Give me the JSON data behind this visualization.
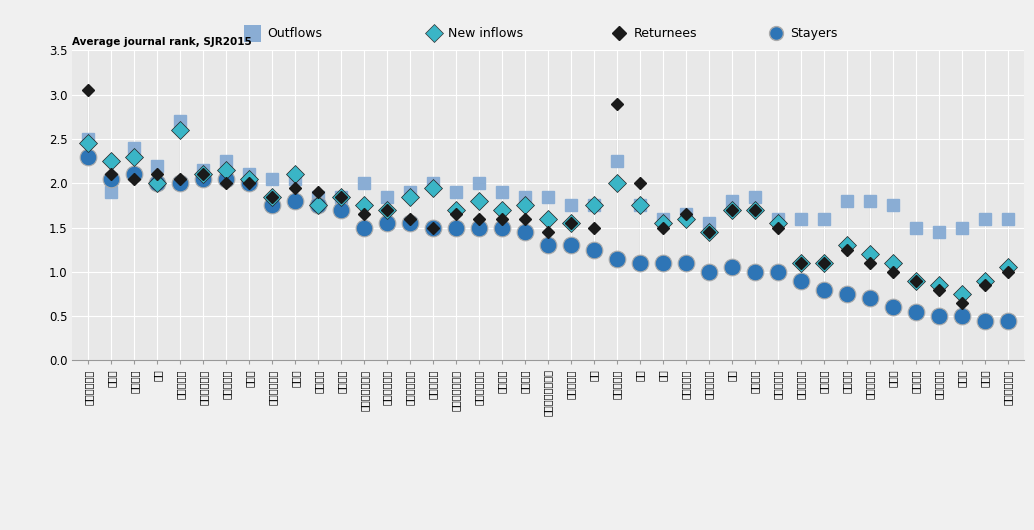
{
  "title": "Average journal rank, SJR2015",
  "legend_items": [
    "Outflows",
    "New inflows",
    "Returnees",
    "Stayers"
  ],
  "header_bg": "#d9d9d9",
  "plot_bg": "#e8e8e8",
  "ylim": [
    0,
    3.5
  ],
  "yticks": [
    0,
    0.5,
    1.0,
    1.5,
    2.0,
    2.5,
    3.0,
    3.5
  ],
  "countries": [
    "アイスランド",
    "スイス",
    "アメリカ",
    "韓国",
    "イスラエル",
    "オーストリア",
    "デンマーク",
    "ドイツ",
    "スウェーデン",
    "カナダ",
    "ベルギー",
    "フランス",
    "オーストラリア",
    "オーストリア",
    "フィンランド",
    "ノルウェー",
    "ルクセンブルク",
    "アイルランド",
    "スペイン",
    "イタリア",
    "ニュージーランド",
    "ハンガリー",
    "日本",
    "エストニア",
    "韓国",
    "チリ",
    "ポルトガル",
    "南アフリカ",
    "中国",
    "ギリシャ",
    "スロベニア",
    "コロンビア",
    "メキシコ",
    "ブラジル",
    "ポーランド",
    "インド",
    "ラトビア",
    "スロバキア",
    "トルコ",
    "ロシア",
    "インドネシア"
  ],
  "outflows": [
    2.5,
    1.9,
    2.4,
    2.2,
    2.7,
    2.15,
    2.25,
    2.1,
    2.05,
    2.05,
    1.85,
    1.85,
    2.0,
    1.85,
    1.9,
    2.0,
    1.9,
    2.0,
    1.9,
    1.85,
    1.85,
    1.75,
    1.75,
    2.25,
    1.75,
    1.6,
    1.65,
    1.55,
    1.8,
    1.85,
    1.6,
    1.6,
    1.6,
    1.8,
    1.8,
    1.75,
    1.5,
    1.45,
    1.5,
    1.6,
    1.6
  ],
  "new_inflows": [
    2.45,
    2.25,
    2.3,
    2.0,
    2.6,
    2.1,
    2.15,
    2.05,
    1.85,
    2.1,
    1.75,
    1.85,
    1.75,
    1.7,
    1.85,
    1.95,
    1.7,
    1.8,
    1.7,
    1.75,
    1.6,
    1.55,
    1.75,
    2.0,
    1.75,
    1.55,
    1.6,
    1.45,
    1.7,
    1.7,
    1.55,
    1.1,
    1.1,
    1.3,
    1.2,
    1.1,
    0.9,
    0.85,
    0.75,
    0.9,
    1.05
  ],
  "returnees": [
    3.05,
    2.1,
    2.05,
    2.1,
    2.05,
    2.1,
    2.0,
    2.0,
    1.85,
    1.95,
    1.9,
    1.85,
    1.65,
    1.7,
    1.6,
    1.5,
    1.65,
    1.6,
    1.6,
    1.6,
    1.45,
    1.55,
    1.5,
    2.9,
    2.0,
    1.5,
    1.65,
    1.45,
    1.7,
    1.7,
    1.5,
    1.1,
    1.1,
    1.25,
    1.1,
    1.0,
    0.9,
    0.8,
    0.65,
    0.85,
    1.0
  ],
  "stayers": [
    2.3,
    2.05,
    2.1,
    2.0,
    2.0,
    2.05,
    2.05,
    2.0,
    1.75,
    1.8,
    1.75,
    1.7,
    1.5,
    1.55,
    1.55,
    1.5,
    1.5,
    1.5,
    1.5,
    1.45,
    1.3,
    1.3,
    1.25,
    1.15,
    1.1,
    1.1,
    1.1,
    1.0,
    1.05,
    1.0,
    1.0,
    0.9,
    0.8,
    0.75,
    0.7,
    0.6,
    0.55,
    0.5,
    0.5,
    0.45,
    0.45
  ],
  "outflow_color": "#8aadd4",
  "new_inflow_color": "#3ab5c6",
  "returnee_color": "#1a1a1a",
  "stayer_color": "#2e75b6",
  "line_color": "#888888",
  "white_grid": "#ffffff"
}
